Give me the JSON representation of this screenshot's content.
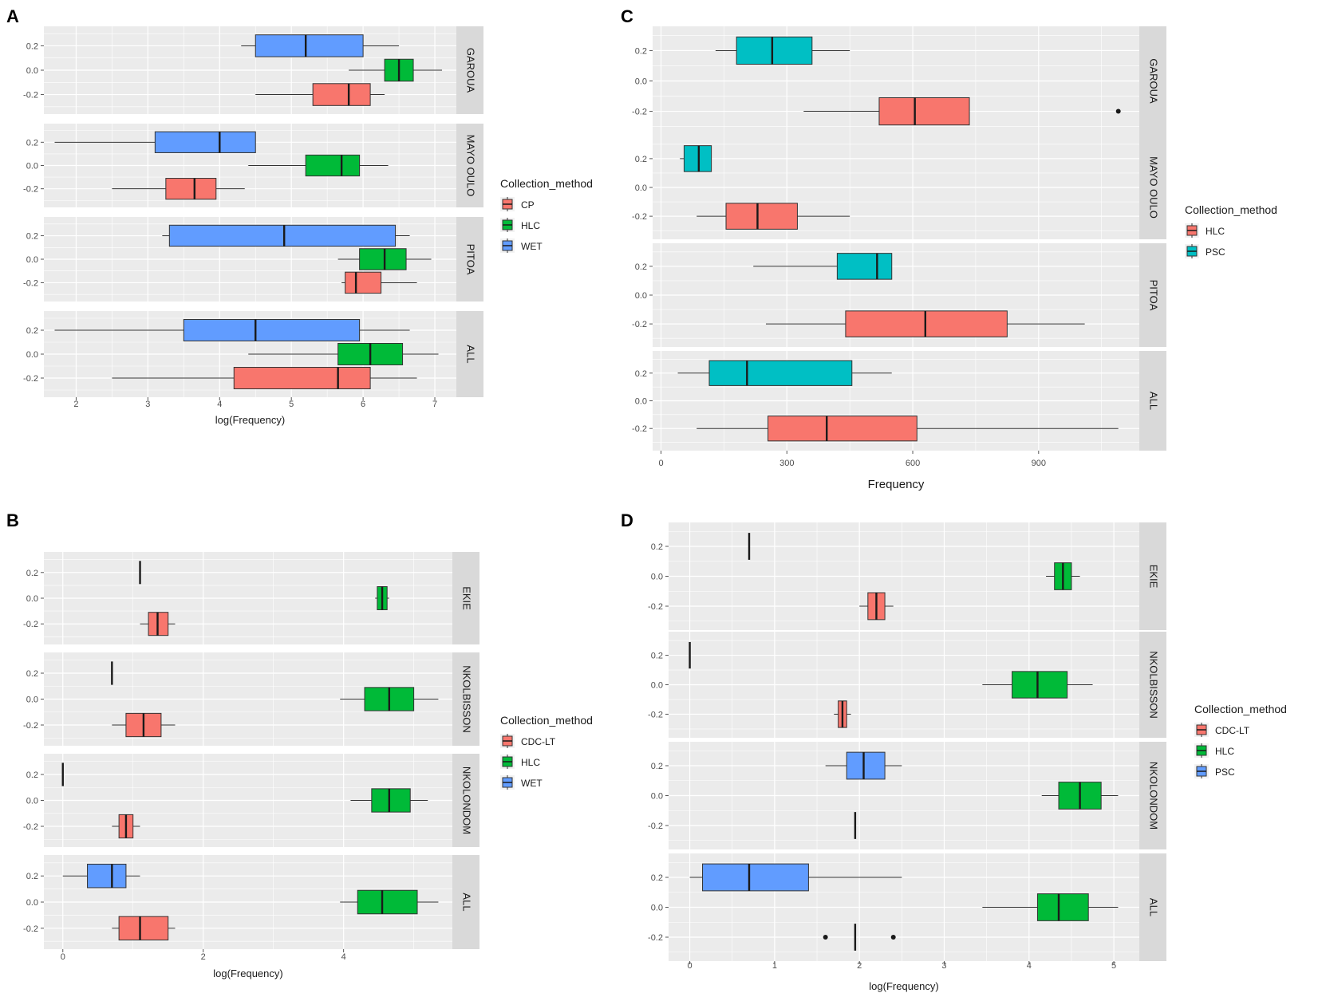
{
  "colors": {
    "panel_bg": "#ebebeb",
    "grid": "#ffffff",
    "CP": "#f8766d",
    "HLC": "#00ba38",
    "WET": "#619cff",
    "PSC_C": "#00bfc4",
    "CDC-LT": "#f8766d",
    "PSC_D": "#619cff",
    "box_line": "#333333"
  },
  "chart_data": [
    {
      "type": "boxplot",
      "panel_label": "A",
      "xlabel": "log(Frequency)",
      "ylabel": "",
      "xlim": [
        1.55,
        7.3
      ],
      "ylim": [
        -0.36,
        0.36
      ],
      "x_ticks": [
        2,
        3,
        4,
        5,
        6,
        7
      ],
      "x_tick_labels": [
        "2",
        "3",
        "4",
        "5",
        "6",
        "7"
      ],
      "y_ticks": [
        -0.2,
        0.0,
        0.2
      ],
      "y_tick_labels": [
        "-0.2",
        "0.0",
        "0.2"
      ],
      "legend_title": "Collection_method",
      "legend_position": "right",
      "legend": [
        {
          "label": "CP",
          "color_key": "CP"
        },
        {
          "label": "HLC",
          "color_key": "HLC"
        },
        {
          "label": "WET",
          "color_key": "WET"
        }
      ],
      "facets": [
        {
          "name": "GAROUA",
          "boxes": [
            {
              "method": "WET",
              "y": 0.2,
              "whisker_low": 4.3,
              "q1": 4.5,
              "median": 5.2,
              "q3": 6.0,
              "whisker_high": 6.5
            },
            {
              "method": "HLC",
              "y": 0.0,
              "whisker_low": 5.8,
              "q1": 6.3,
              "median": 6.5,
              "q3": 6.7,
              "whisker_high": 7.1
            },
            {
              "method": "CP",
              "y": -0.2,
              "whisker_low": 4.5,
              "q1": 5.3,
              "median": 5.8,
              "q3": 6.1,
              "whisker_high": 6.3
            }
          ]
        },
        {
          "name": "MAYO OULO",
          "boxes": [
            {
              "method": "WET",
              "y": 0.2,
              "whisker_low": 1.7,
              "q1": 3.1,
              "median": 4.0,
              "q3": 4.5,
              "whisker_high": 4.5
            },
            {
              "method": "HLC",
              "y": 0.0,
              "whisker_low": 4.4,
              "q1": 5.2,
              "median": 5.7,
              "q3": 5.95,
              "whisker_high": 6.35
            },
            {
              "method": "CP",
              "y": -0.2,
              "whisker_low": 2.5,
              "q1": 3.25,
              "median": 3.65,
              "q3": 3.95,
              "whisker_high": 4.35
            }
          ]
        },
        {
          "name": "PITOA",
          "boxes": [
            {
              "method": "WET",
              "y": 0.2,
              "whisker_low": 3.2,
              "q1": 3.3,
              "median": 4.9,
              "q3": 6.45,
              "whisker_high": 6.65
            },
            {
              "method": "HLC",
              "y": 0.0,
              "whisker_low": 5.65,
              "q1": 5.95,
              "median": 6.3,
              "q3": 6.6,
              "whisker_high": 6.95
            },
            {
              "method": "CP",
              "y": -0.2,
              "whisker_low": 5.7,
              "q1": 5.75,
              "median": 5.9,
              "q3": 6.25,
              "whisker_high": 6.75
            }
          ]
        },
        {
          "name": "ALL",
          "boxes": [
            {
              "method": "WET",
              "y": 0.2,
              "whisker_low": 1.7,
              "q1": 3.5,
              "median": 4.5,
              "q3": 5.95,
              "whisker_high": 6.65
            },
            {
              "method": "HLC",
              "y": 0.0,
              "whisker_low": 4.4,
              "q1": 5.65,
              "median": 6.1,
              "q3": 6.55,
              "whisker_high": 7.05
            },
            {
              "method": "CP",
              "y": -0.2,
              "whisker_low": 2.5,
              "q1": 4.2,
              "median": 5.65,
              "q3": 6.1,
              "whisker_high": 6.75
            }
          ]
        }
      ]
    },
    {
      "type": "boxplot",
      "panel_label": "C",
      "xlabel": "Frequency",
      "ylabel": "",
      "xlim": [
        -20,
        1140
      ],
      "ylim": [
        -0.36,
        0.36
      ],
      "x_ticks": [
        0,
        300,
        600,
        900
      ],
      "x_tick_labels": [
        "0",
        "300",
        "600",
        "900"
      ],
      "y_ticks": [
        -0.2,
        0.0,
        0.2
      ],
      "y_tick_labels": [
        "-0.2",
        "0.0",
        "0.2"
      ],
      "legend_title": "Collection_method",
      "legend_position": "right",
      "legend": [
        {
          "label": "HLC",
          "color_key": "CP"
        },
        {
          "label": "PSC",
          "color_key": "PSC_C"
        }
      ],
      "facets": [
        {
          "name": "GAROUA",
          "boxes": [
            {
              "method": "PSC",
              "y": 0.2,
              "whisker_low": 130,
              "q1": 180,
              "median": 265,
              "q3": 360,
              "whisker_high": 450
            },
            {
              "method": "HLC",
              "y": -0.2,
              "whisker_low": 340,
              "q1": 520,
              "median": 605,
              "q3": 735,
              "whisker_high": 735,
              "outliers": [
                1090
              ]
            }
          ]
        },
        {
          "name": "MAYO OULO",
          "boxes": [
            {
              "method": "PSC",
              "y": 0.2,
              "whisker_low": 45,
              "q1": 55,
              "median": 90,
              "q3": 120,
              "whisker_high": 120
            },
            {
              "method": "HLC",
              "y": -0.2,
              "whisker_low": 85,
              "q1": 155,
              "median": 230,
              "q3": 325,
              "whisker_high": 450
            }
          ]
        },
        {
          "name": "PITOA",
          "boxes": [
            {
              "method": "PSC",
              "y": 0.2,
              "whisker_low": 220,
              "q1": 420,
              "median": 515,
              "q3": 550,
              "whisker_high": 550
            },
            {
              "method": "HLC",
              "y": -0.2,
              "whisker_low": 250,
              "q1": 440,
              "median": 630,
              "q3": 825,
              "whisker_high": 1010
            }
          ]
        },
        {
          "name": "ALL",
          "boxes": [
            {
              "method": "PSC",
              "y": 0.2,
              "whisker_low": 40,
              "q1": 115,
              "median": 205,
              "q3": 455,
              "whisker_high": 550
            },
            {
              "method": "HLC",
              "y": -0.2,
              "whisker_low": 85,
              "q1": 255,
              "median": 395,
              "q3": 610,
              "whisker_high": 1090
            }
          ]
        }
      ]
    },
    {
      "type": "boxplot",
      "panel_label": "B",
      "xlabel": "log(Frequency)",
      "ylabel": "",
      "xlim": [
        -0.27,
        5.55
      ],
      "ylim": [
        -0.36,
        0.36
      ],
      "x_ticks": [
        0,
        2,
        4
      ],
      "x_tick_labels": [
        "0",
        "2",
        "4"
      ],
      "y_ticks": [
        -0.2,
        0.0,
        0.2
      ],
      "y_tick_labels": [
        "-0.2",
        "0.0",
        "0.2"
      ],
      "legend_title": "Collection_method",
      "legend_position": "right",
      "legend": [
        {
          "label": "CDC-LT",
          "color_key": "CDC-LT"
        },
        {
          "label": "HLC",
          "color_key": "HLC"
        },
        {
          "label": "WET",
          "color_key": "WET"
        }
      ],
      "facets": [
        {
          "name": "EKIE",
          "boxes": [
            {
              "method": "WET",
              "y": 0.2,
              "whisker_low": 1.1,
              "q1": 1.1,
              "median": 1.1,
              "q3": 1.1,
              "whisker_high": 1.1
            },
            {
              "method": "HLC",
              "y": 0.0,
              "whisker_low": 4.45,
              "q1": 4.48,
              "median": 4.55,
              "q3": 4.62,
              "whisker_high": 4.65
            },
            {
              "method": "CDC-LT",
              "y": -0.2,
              "whisker_low": 1.1,
              "q1": 1.22,
              "median": 1.35,
              "q3": 1.5,
              "whisker_high": 1.6
            }
          ]
        },
        {
          "name": "NKOLBISSON",
          "boxes": [
            {
              "method": "WET",
              "y": 0.2,
              "whisker_low": 0.7,
              "q1": 0.7,
              "median": 0.7,
              "q3": 0.7,
              "whisker_high": 0.7
            },
            {
              "method": "HLC",
              "y": 0.0,
              "whisker_low": 3.95,
              "q1": 4.3,
              "median": 4.65,
              "q3": 5.0,
              "whisker_high": 5.35
            },
            {
              "method": "CDC-LT",
              "y": -0.2,
              "whisker_low": 0.7,
              "q1": 0.9,
              "median": 1.15,
              "q3": 1.4,
              "whisker_high": 1.6
            }
          ]
        },
        {
          "name": "NKOLONDOM",
          "boxes": [
            {
              "method": "WET",
              "y": 0.2,
              "whisker_low": 0.0,
              "q1": 0.0,
              "median": 0.0,
              "q3": 0.0,
              "whisker_high": 0.0
            },
            {
              "method": "HLC",
              "y": 0.0,
              "whisker_low": 4.1,
              "q1": 4.4,
              "median": 4.65,
              "q3": 4.95,
              "whisker_high": 5.2
            },
            {
              "method": "CDC-LT",
              "y": -0.2,
              "whisker_low": 0.7,
              "q1": 0.8,
              "median": 0.9,
              "q3": 1.0,
              "whisker_high": 1.1
            }
          ]
        },
        {
          "name": "ALL",
          "boxes": [
            {
              "method": "WET",
              "y": 0.2,
              "whisker_low": 0.0,
              "q1": 0.35,
              "median": 0.7,
              "q3": 0.9,
              "whisker_high": 1.1
            },
            {
              "method": "HLC",
              "y": 0.0,
              "whisker_low": 3.95,
              "q1": 4.2,
              "median": 4.55,
              "q3": 5.05,
              "whisker_high": 5.35
            },
            {
              "method": "CDC-LT",
              "y": -0.2,
              "whisker_low": 0.7,
              "q1": 0.8,
              "median": 1.1,
              "q3": 1.5,
              "whisker_high": 1.6
            }
          ]
        }
      ]
    },
    {
      "type": "boxplot",
      "panel_label": "D",
      "xlabel": "log(Frequency)",
      "ylabel": "",
      "xlim": [
        -0.25,
        5.3
      ],
      "ylim": [
        -0.36,
        0.36
      ],
      "x_ticks": [
        0,
        1,
        2,
        3,
        4,
        5
      ],
      "x_tick_labels": [
        "0",
        "1",
        "2",
        "3",
        "4",
        "5"
      ],
      "y_ticks": [
        -0.2,
        0.0,
        0.2
      ],
      "y_tick_labels": [
        "-0.2",
        "0.0",
        "0.2"
      ],
      "legend_title": "Collection_method",
      "legend_position": "right",
      "legend": [
        {
          "label": "CDC-LT",
          "color_key": "CDC-LT"
        },
        {
          "label": "HLC",
          "color_key": "HLC"
        },
        {
          "label": "PSC",
          "color_key": "PSC_D"
        }
      ],
      "facets": [
        {
          "name": "EKIE",
          "boxes": [
            {
              "method": "PSC",
              "y": 0.2,
              "whisker_low": 0.7,
              "q1": 0.7,
              "median": 0.7,
              "q3": 0.7,
              "whisker_high": 0.7
            },
            {
              "method": "HLC",
              "y": 0.0,
              "whisker_low": 4.2,
              "q1": 4.3,
              "median": 4.4,
              "q3": 4.5,
              "whisker_high": 4.6
            },
            {
              "method": "CDC-LT",
              "y": -0.2,
              "whisker_low": 2.0,
              "q1": 2.1,
              "median": 2.2,
              "q3": 2.3,
              "whisker_high": 2.4
            }
          ]
        },
        {
          "name": "NKOLBISSON",
          "boxes": [
            {
              "method": "PSC",
              "y": 0.2,
              "whisker_low": 0.0,
              "q1": 0.0,
              "median": 0.0,
              "q3": 0.0,
              "whisker_high": 0.0
            },
            {
              "method": "HLC",
              "y": 0.0,
              "whisker_low": 3.45,
              "q1": 3.8,
              "median": 4.1,
              "q3": 4.45,
              "whisker_high": 4.75
            },
            {
              "method": "CDC-LT",
              "y": -0.2,
              "whisker_low": 1.7,
              "q1": 1.75,
              "median": 1.8,
              "q3": 1.85,
              "whisker_high": 1.9
            }
          ]
        },
        {
          "name": "NKOLONDOM",
          "boxes": [
            {
              "method": "PSC",
              "y": 0.2,
              "whisker_low": 1.6,
              "q1": 1.85,
              "median": 2.05,
              "q3": 2.3,
              "whisker_high": 2.5
            },
            {
              "method": "HLC",
              "y": 0.0,
              "whisker_low": 4.15,
              "q1": 4.35,
              "median": 4.6,
              "q3": 4.85,
              "whisker_high": 5.05
            },
            {
              "method": "CDC-LT",
              "y": -0.2,
              "whisker_low": 1.95,
              "q1": 1.95,
              "median": 1.95,
              "q3": 1.95,
              "whisker_high": 1.95
            }
          ]
        },
        {
          "name": "ALL",
          "boxes": [
            {
              "method": "PSC",
              "y": 0.2,
              "whisker_low": 0.0,
              "q1": 0.15,
              "median": 0.7,
              "q3": 1.4,
              "whisker_high": 2.5
            },
            {
              "method": "HLC",
              "y": 0.0,
              "whisker_low": 3.45,
              "q1": 4.1,
              "median": 4.35,
              "q3": 4.7,
              "whisker_high": 5.05
            },
            {
              "method": "CDC-LT",
              "y": -0.2,
              "whisker_low": 1.95,
              "q1": 1.95,
              "median": 1.95,
              "q3": 1.95,
              "whisker_high": 1.95,
              "outliers": [
                1.6,
                2.4
              ]
            }
          ]
        }
      ]
    }
  ]
}
